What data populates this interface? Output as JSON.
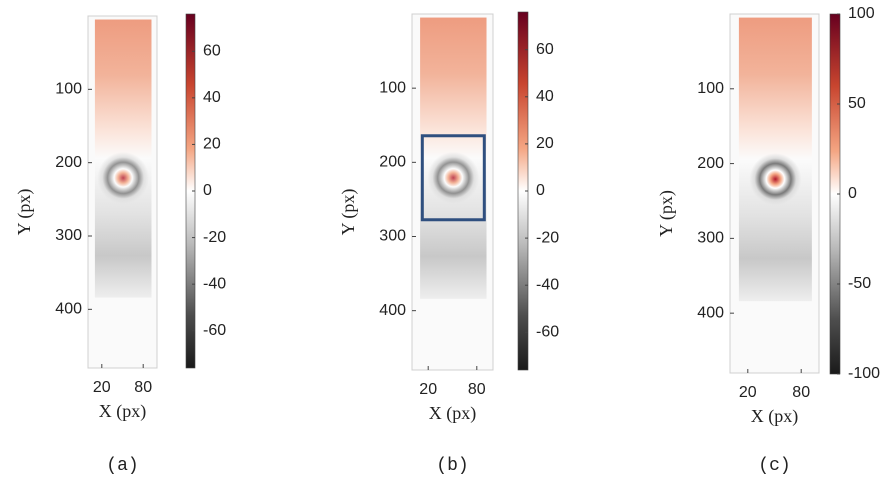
{
  "chart_data": [
    {
      "type": "heatmap",
      "caption": "(a)",
      "xlabel": "X (px)",
      "ylabel": "Y (px)",
      "xlim": [
        0,
        100
      ],
      "xticks": [
        20,
        80
      ],
      "ylim": [
        0,
        480
      ],
      "yticks": [
        100,
        200,
        300,
        400
      ],
      "colorbar_lim": [
        -76,
        76
      ],
      "colorbar_ticks": [
        60,
        40,
        20,
        0,
        -20,
        -40,
        -60
      ]
    },
    {
      "type": "heatmap",
      "caption": "(b)",
      "xlabel": "X (px)",
      "ylabel": "Y (px)",
      "xlim": [
        0,
        100
      ],
      "xticks": [
        20,
        80
      ],
      "ylim": [
        0,
        480
      ],
      "yticks": [
        100,
        200,
        300,
        400
      ],
      "colorbar_lim": [
        -76,
        76
      ],
      "colorbar_ticks": [
        60,
        40,
        20,
        0,
        -20,
        -40,
        -60
      ]
    },
    {
      "type": "heatmap",
      "caption": "(c)",
      "xlabel": "X (px)",
      "ylabel": "Y (px)",
      "xlim": [
        0,
        100
      ],
      "xticks": [
        20,
        80
      ],
      "ylim": [
        0,
        480
      ],
      "yticks": [
        100,
        200,
        300,
        400
      ],
      "colorbar_lim": [
        -100,
        100
      ],
      "colorbar_ticks": [
        100,
        50,
        0,
        -50,
        -100
      ]
    }
  ]
}
